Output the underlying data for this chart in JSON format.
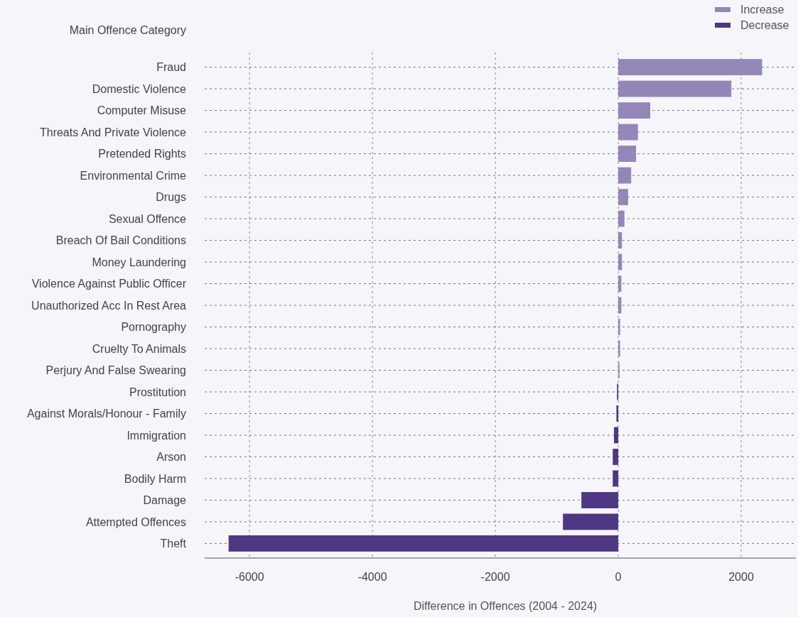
{
  "chart_data": {
    "type": "bar",
    "orientation": "horizontal",
    "ylabel": "Main Offence Category",
    "xlabel": "Difference in Offences (2004 - 2024)",
    "categories": [
      "Fraud",
      "Domestic Violence",
      "Computer Misuse",
      "Threats And Private Violence",
      "Pretended Rights",
      "Environmental Crime",
      "Drugs",
      "Sexual Offence",
      "Breach Of Bail Conditions",
      "Money Laundering",
      "Violence Against Public Officer",
      "Unauthorized Acc In Rest Area",
      "Pornography",
      "Cruelty To Animals",
      "Perjury And False Swearing",
      "Prostitution",
      "Against Morals/Honour - Family",
      "Immigration",
      "Arson",
      "Bodily Harm",
      "Damage",
      "Attempted Offences",
      "Theft"
    ],
    "series": [
      {
        "name": "Increase",
        "color": "#9486b8",
        "values": [
          2340,
          1840,
          520,
          320,
          290,
          210,
          160,
          100,
          60,
          60,
          50,
          50,
          30,
          30,
          20,
          null,
          null,
          null,
          null,
          null,
          null,
          null,
          null
        ]
      },
      {
        "name": "Decrease",
        "color": "#4e3883",
        "values": [
          null,
          null,
          null,
          null,
          null,
          null,
          null,
          null,
          null,
          null,
          null,
          null,
          null,
          null,
          null,
          -20,
          -30,
          -70,
          -90,
          -90,
          -600,
          -900,
          -6340
        ]
      }
    ],
    "xlim": [
      -6730,
      2890
    ],
    "xticks": [
      -6000,
      -4000,
      -2000,
      0,
      2000
    ],
    "grid": true,
    "legend": "top right"
  }
}
